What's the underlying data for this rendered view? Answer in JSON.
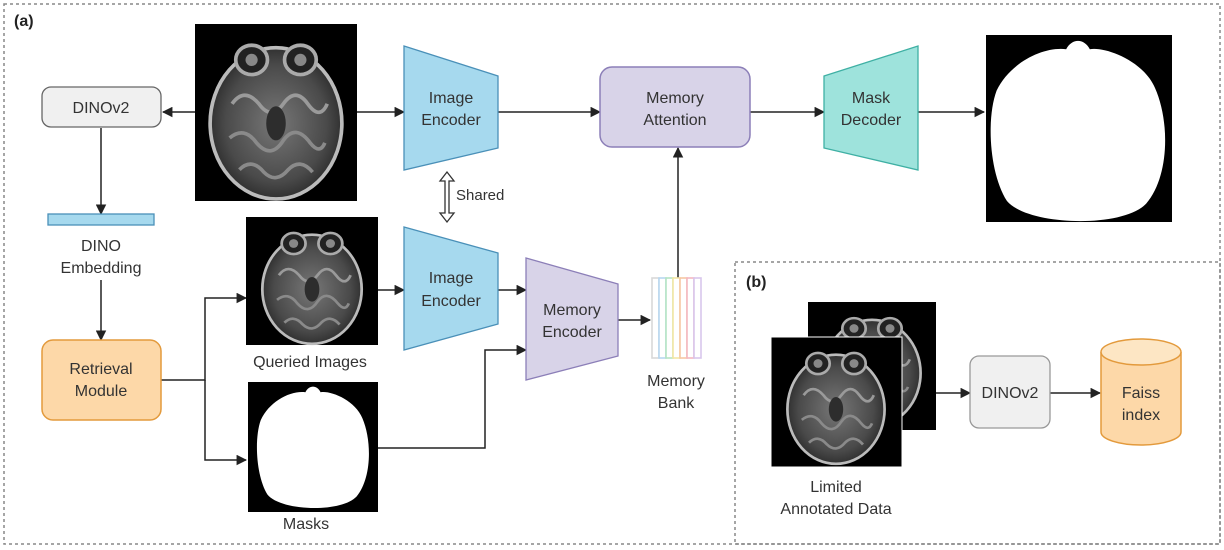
{
  "panels": {
    "a_label": "(a)",
    "b_label": "(b)"
  },
  "nodes": {
    "dinov2_a": "DINOv2",
    "image_encoder_top": [
      "Image",
      "Encoder"
    ],
    "memory_attention": [
      "Memory",
      "Attention"
    ],
    "mask_decoder": [
      "Mask",
      "Decoder"
    ],
    "dino_embedding": [
      "DINO",
      "Embedding"
    ],
    "shared": "Shared",
    "image_encoder_bottom": [
      "Image",
      "Encoder"
    ],
    "memory_encoder": [
      "Memory",
      "Encoder"
    ],
    "memory_bank": [
      "Memory",
      "Bank"
    ],
    "retrieval_module": [
      "Retrieval",
      "Module"
    ],
    "queried_images": "Queried Images",
    "masks": "Masks",
    "dinov2_b": "DINOv2",
    "faiss_index": [
      "Faiss",
      "index"
    ],
    "limited_annotated_data": [
      "Limited",
      "Annotated Data"
    ]
  },
  "colors": {
    "encoder": "#a6d9ee",
    "decoder": "#9ee3dc",
    "memory": "#d8d3e8",
    "retrieval": "#fdd8a8",
    "dinov2": "#f0f0f0",
    "memory_bank_stripes": [
      "#d9d9d9",
      "#b7d7f0",
      "#b5e4c3",
      "#f3e6a4",
      "#f7c7a3",
      "#f3b8c2",
      "#d9c6ec"
    ]
  }
}
